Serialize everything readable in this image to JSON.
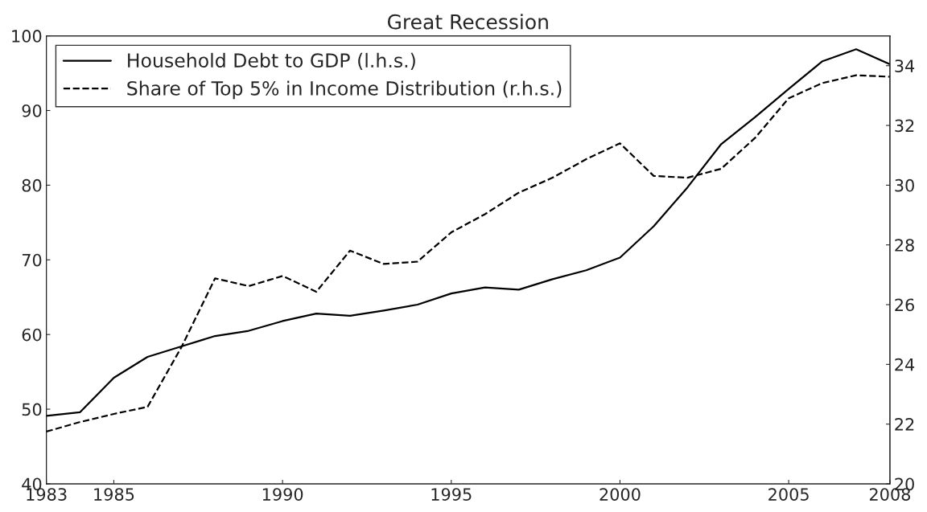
{
  "chart_data": {
    "type": "line",
    "title": "Great Recession",
    "x": [
      1983,
      1984,
      1985,
      1986,
      1987,
      1988,
      1989,
      1990,
      1991,
      1992,
      1993,
      1994,
      1995,
      1996,
      1997,
      1998,
      1999,
      2000,
      2001,
      2002,
      2003,
      2004,
      2005,
      2006,
      2007,
      2008
    ],
    "series": [
      {
        "name": "Household Debt to GDP (l.h.s.)",
        "color": "#000000",
        "line_style": "solid",
        "values": [
          49.1,
          49.6,
          54.2,
          57.0,
          58.4,
          59.8,
          60.5,
          61.8,
          62.8,
          62.5,
          63.2,
          64.0,
          65.5,
          66.3,
          66.0,
          67.4,
          68.6,
          70.3,
          74.5,
          79.7,
          85.5,
          89.1,
          92.9,
          96.6,
          98.2,
          96.2
        ]
      },
      {
        "name": "Share of Top 5% in Income Distribution (r.h.s.)",
        "color": "#000000",
        "line_style": "dashed",
        "axis": "y2",
        "values": [
          21.75,
          22.07,
          22.34,
          22.58,
          24.57,
          26.88,
          26.62,
          26.96,
          26.43,
          27.81,
          27.36,
          27.44,
          28.42,
          29.03,
          29.75,
          30.25,
          30.87,
          31.4,
          30.31,
          30.25,
          30.55,
          31.58,
          32.91,
          33.42,
          33.68,
          33.63
        ]
      }
    ],
    "xlim": [
      1983,
      2008
    ],
    "xticks": [
      1983,
      1985,
      1990,
      1995,
      2000,
      2005,
      2008
    ],
    "ylim": [
      40,
      100
    ],
    "yticks": [
      40,
      50,
      60,
      70,
      80,
      90,
      100
    ],
    "y2lim": [
      20,
      35
    ],
    "y2ticks": [
      20,
      22,
      24,
      26,
      28,
      30,
      32,
      34
    ],
    "grid": false,
    "legend": "top left"
  }
}
